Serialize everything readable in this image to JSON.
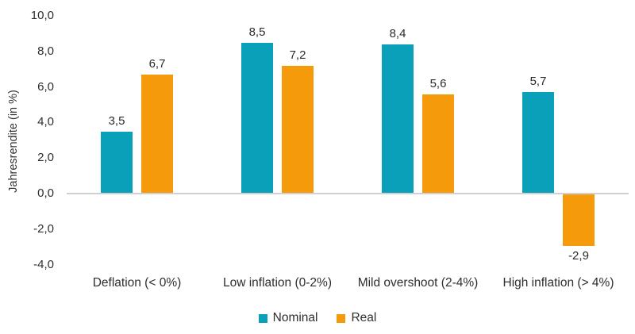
{
  "chart_data": {
    "type": "bar",
    "title": "",
    "xlabel": "",
    "ylabel": "Jahresrendite (in %)",
    "ylim": [
      -4,
      10
    ],
    "grid": false,
    "decimal_format": "comma",
    "yticks": [
      {
        "value": 10,
        "label": "10,0"
      },
      {
        "value": 8,
        "label": "8,0"
      },
      {
        "value": 6,
        "label": "6,0"
      },
      {
        "value": 4,
        "label": "4,0"
      },
      {
        "value": 2,
        "label": "2,0"
      },
      {
        "value": 0,
        "label": "0,0"
      },
      {
        "value": -2,
        "label": "-2,0"
      },
      {
        "value": -4,
        "label": "-4,0"
      }
    ],
    "categories": [
      "Deflation (< 0%)",
      "Low inflation (0-2%)",
      "Mild overshoot (2-4%)",
      "High inflation (> 4%)"
    ],
    "series": [
      {
        "name": "Nominal",
        "color": "#0aa0ba",
        "values": [
          3.5,
          8.5,
          8.4,
          5.7
        ],
        "labels": [
          "3,5",
          "8,5",
          "8,4",
          "5,7"
        ]
      },
      {
        "name": "Real",
        "color": "#f59a0a",
        "values": [
          6.7,
          7.2,
          5.6,
          -2.9
        ],
        "labels": [
          "6,7",
          "7,2",
          "5,6",
          "-2,9"
        ]
      }
    ],
    "legend": {
      "position": "bottom",
      "entries": [
        "Nominal",
        "Real"
      ]
    },
    "colors": {
      "nominal": "#0aa0ba",
      "real": "#f59a0a",
      "baseline": "#d0d0d0",
      "text": "#2e2e2e"
    }
  }
}
